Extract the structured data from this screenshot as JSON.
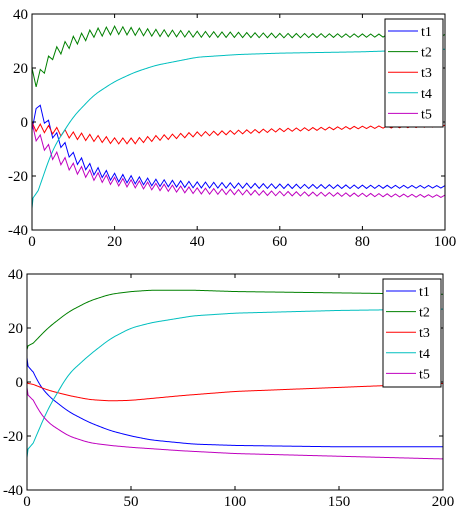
{
  "chart_data": [
    {
      "type": "line",
      "xlim": [
        0,
        100
      ],
      "ylim": [
        -40,
        40
      ],
      "x_ticks": [
        0,
        20,
        40,
        60,
        80,
        100
      ],
      "y_ticks": [
        -40,
        -20,
        0,
        20,
        40
      ],
      "x_tick_labels": [
        "0",
        "20",
        "40",
        "60",
        "80",
        "100"
      ],
      "y_tick_labels": [
        "-40",
        "-20",
        "0",
        "20",
        "40"
      ],
      "grid": false,
      "legend_position": "top-right",
      "oscillation": {
        "amplitude_decay": 0.015,
        "starts_at_x": 1,
        "cycle_length_x": 2
      },
      "series": [
        {
          "name": "t1",
          "color": "#0000ff",
          "points": [
            [
              0,
              -3
            ],
            [
              1,
              7
            ],
            [
              5,
              -4
            ],
            [
              10,
              -13
            ],
            [
              15,
              -18
            ],
            [
              20,
              -20.5
            ],
            [
              30,
              -22.5
            ],
            [
              40,
              -23.3
            ],
            [
              60,
              -23.8
            ],
            [
              80,
              -24
            ],
            [
              100,
              -24
            ]
          ],
          "oscillation_amplitude": 4
        },
        {
          "name": "t2",
          "color": "#008000",
          "points": [
            [
              0,
              20
            ],
            [
              1,
              15
            ],
            [
              5,
              25
            ],
            [
              10,
              30
            ],
            [
              15,
              33
            ],
            [
              20,
              34
            ],
            [
              25,
              33.5
            ],
            [
              30,
              33
            ],
            [
              40,
              32.5
            ],
            [
              60,
              32
            ],
            [
              80,
              32
            ],
            [
              100,
              32
            ]
          ],
          "oscillation_amplitude": 4
        },
        {
          "name": "t3",
          "color": "#ff0000",
          "points": [
            [
              0,
              0
            ],
            [
              1,
              -2
            ],
            [
              5,
              -3
            ],
            [
              10,
              -5
            ],
            [
              20,
              -7
            ],
            [
              25,
              -7
            ],
            [
              30,
              -6
            ],
            [
              40,
              -4.5
            ],
            [
              60,
              -3
            ],
            [
              80,
              -2
            ],
            [
              100,
              -1.5
            ]
          ],
          "oscillation_amplitude": 3
        },
        {
          "name": "t4",
          "color": "#00bfbf",
          "points": [
            [
              0,
              -32
            ],
            [
              5,
              -10
            ],
            [
              10,
              2
            ],
            [
              15,
              10
            ],
            [
              20,
              15
            ],
            [
              25,
              18.5
            ],
            [
              30,
              21
            ],
            [
              40,
              24
            ],
            [
              50,
              25
            ],
            [
              60,
              25.5
            ],
            [
              80,
              26
            ],
            [
              100,
              27
            ]
          ],
          "oscillation_amplitude": 0
        },
        {
          "name": "t5",
          "color": "#bf00bf",
          "points": [
            [
              0,
              0
            ],
            [
              1,
              -5
            ],
            [
              5,
              -12
            ],
            [
              10,
              -17
            ],
            [
              15,
              -20
            ],
            [
              20,
              -22
            ],
            [
              30,
              -24
            ],
            [
              40,
              -25.5
            ],
            [
              60,
              -26.5
            ],
            [
              80,
              -27
            ],
            [
              100,
              -27.5
            ]
          ],
          "oscillation_amplitude": 4
        }
      ]
    },
    {
      "type": "line",
      "xlim": [
        0,
        200
      ],
      "ylim": [
        -40,
        40
      ],
      "x_ticks": [
        0,
        50,
        100,
        150,
        200
      ],
      "y_ticks": [
        -40,
        -20,
        0,
        20,
        40
      ],
      "x_tick_labels": [
        "0",
        "50",
        "100",
        "150",
        "200"
      ],
      "y_tick_labels": [
        "-40",
        "-20",
        "0",
        "20",
        "40"
      ],
      "grid": false,
      "legend_position": "top-right",
      "series": [
        {
          "name": "t1",
          "color": "#0000ff",
          "points": [
            [
              0,
              9
            ],
            [
              5,
              0
            ],
            [
              10,
              -5
            ],
            [
              20,
              -11
            ],
            [
              30,
              -15
            ],
            [
              40,
              -18
            ],
            [
              50,
              -20
            ],
            [
              60,
              -21.5
            ],
            [
              80,
              -23
            ],
            [
              100,
              -23.5
            ],
            [
              150,
              -24
            ],
            [
              200,
              -24
            ]
          ]
        },
        {
          "name": "t2",
          "color": "#008000",
          "points": [
            [
              0,
              12
            ],
            [
              10,
              20
            ],
            [
              20,
              26
            ],
            [
              30,
              30
            ],
            [
              40,
              32.5
            ],
            [
              50,
              33.5
            ],
            [
              60,
              34
            ],
            [
              80,
              34
            ],
            [
              100,
              33.5
            ],
            [
              150,
              33
            ],
            [
              200,
              32.5
            ]
          ]
        },
        {
          "name": "t3",
          "color": "#ff0000",
          "points": [
            [
              0,
              0
            ],
            [
              10,
              -3
            ],
            [
              20,
              -5
            ],
            [
              30,
              -6.5
            ],
            [
              40,
              -7
            ],
            [
              50,
              -6.8
            ],
            [
              75,
              -5
            ],
            [
              100,
              -3.5
            ],
            [
              150,
              -2
            ],
            [
              200,
              -0.5
            ]
          ]
        },
        {
          "name": "t4",
          "color": "#00bfbf",
          "points": [
            [
              0,
              -28
            ],
            [
              10,
              -10
            ],
            [
              20,
              3
            ],
            [
              30,
              10
            ],
            [
              40,
              16
            ],
            [
              50,
              20
            ],
            [
              60,
              22
            ],
            [
              80,
              24.5
            ],
            [
              100,
              25.5
            ],
            [
              150,
              26.5
            ],
            [
              200,
              27
            ]
          ]
        },
        {
          "name": "t5",
          "color": "#bf00bf",
          "points": [
            [
              0,
              -2
            ],
            [
              5,
              -10
            ],
            [
              10,
              -15
            ],
            [
              20,
              -20
            ],
            [
              30,
              -22.5
            ],
            [
              40,
              -23.5
            ],
            [
              50,
              -24.2
            ],
            [
              75,
              -25.5
            ],
            [
              100,
              -26.5
            ],
            [
              150,
              -27.5
            ],
            [
              200,
              -28.5
            ]
          ]
        }
      ]
    }
  ]
}
